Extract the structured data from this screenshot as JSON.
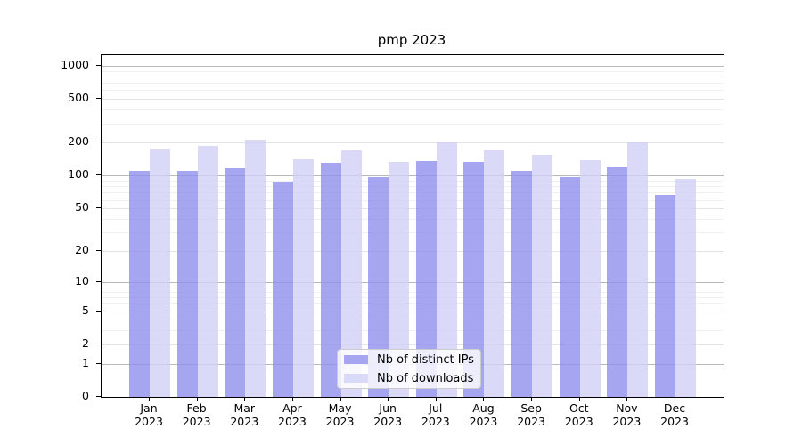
{
  "chart_data": {
    "type": "bar",
    "title": "pmp 2023",
    "categories": [
      "Jan",
      "Feb",
      "Mar",
      "Apr",
      "May",
      "Jun",
      "Jul",
      "Aug",
      "Sep",
      "Oct",
      "Nov",
      "Dec"
    ],
    "category_year_line": "2023",
    "series": [
      {
        "name": "Nb of distinct IPs",
        "color": "#9090ec",
        "values": [
          110,
          111,
          118,
          89,
          131,
          98,
          137,
          134,
          110,
          97,
          120,
          67
        ]
      },
      {
        "name": "Nb of downloads",
        "color": "#d1d1f6",
        "values": [
          178,
          188,
          213,
          141,
          170,
          134,
          200,
          173,
          154,
          138,
          200,
          93
        ]
      }
    ],
    "y_ticks": [
      0,
      1,
      2,
      5,
      10,
      20,
      50,
      100,
      200,
      500,
      1000
    ],
    "y_major_ticks": [
      1,
      10,
      100,
      1000
    ],
    "y_minor_ticks": [
      3,
      4,
      6,
      7,
      8,
      9,
      30,
      40,
      60,
      70,
      80,
      90,
      300,
      400,
      600,
      700,
      800,
      900
    ],
    "scale": "log1p",
    "ylim": [
      0,
      1250
    ],
    "grid": true,
    "legend_position": "lower center",
    "colors": {
      "distinct_ips_bar": "#9090ec",
      "downloads_bar": "#d1d1f6",
      "grid_major": "#b9b9b9",
      "grid_minor": "#f0f0f0"
    }
  }
}
